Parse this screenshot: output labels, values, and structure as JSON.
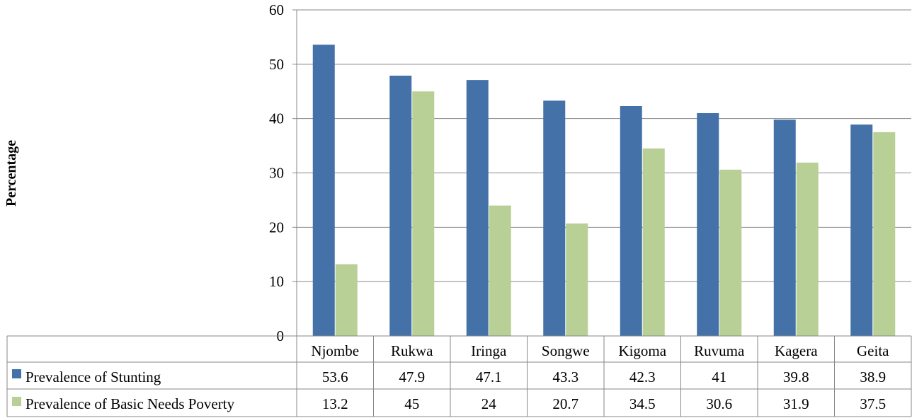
{
  "chart_data": {
    "type": "bar",
    "title": "",
    "xlabel": "",
    "ylabel": "Percentage",
    "ylim": [
      0,
      60
    ],
    "yticks": [
      0,
      10,
      20,
      30,
      40,
      50,
      60
    ],
    "grid": true,
    "legend": "data-table",
    "categories": [
      "Njombe",
      "Rukwa",
      "Iringa",
      "Songwe",
      "Kigoma",
      "Ruvuma",
      "Kagera",
      "Geita"
    ],
    "series": [
      {
        "name": "Prevalence of Stunting",
        "color": "#4472a8",
        "values": [
          53.6,
          47.9,
          47.1,
          43.3,
          42.3,
          41,
          39.8,
          38.9
        ],
        "labels": [
          "53.6",
          "47.9",
          "47.1",
          "43.3",
          "42.3",
          "41",
          "39.8",
          "38.9"
        ]
      },
      {
        "name": "Prevalence of Basic Needs Poverty",
        "color": "#b8cf96",
        "values": [
          13.2,
          45,
          24,
          20.7,
          34.5,
          30.6,
          31.9,
          37.5
        ],
        "labels": [
          "13.2",
          "45",
          "24",
          "20.7",
          "34.5",
          "30.6",
          "31.9",
          "37.5"
        ]
      }
    ]
  }
}
